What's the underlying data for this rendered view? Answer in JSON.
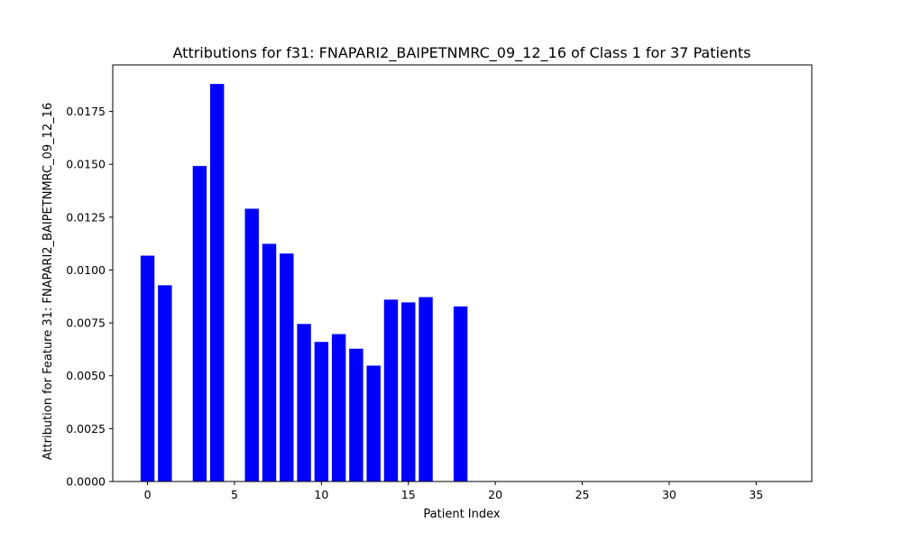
{
  "chart_data": {
    "type": "bar",
    "title": "Attributions for f31: FNAPARI2_BAIPETNMRC_09_12_16 of Class 1 for 37 Patients",
    "xlabel": "Patient Index",
    "ylabel": "Attribution for Feature 31: FNAPARI2_BAIPETNMRC_09_12_16",
    "xlim": [
      -2,
      38.2
    ],
    "ylim": [
      0,
      0.0197
    ],
    "bar_width": 0.8,
    "bar_color": "#0000ff",
    "x": [
      0,
      1,
      2,
      3,
      4,
      5,
      6,
      7,
      8,
      9,
      10,
      11,
      12,
      13,
      14,
      15,
      16,
      17,
      18,
      19,
      20,
      21,
      22,
      23,
      24,
      25,
      26,
      27,
      28,
      29,
      30,
      31,
      32,
      33,
      34,
      35,
      36
    ],
    "values": [
      0.01068,
      0.00928,
      0,
      0.01492,
      0.0188,
      0,
      0.0129,
      0.01124,
      0.01078,
      0.00745,
      0.0066,
      0.00697,
      0.00628,
      0.00548,
      0.0086,
      0.00847,
      0.00872,
      0,
      0.00828,
      0,
      0,
      0,
      0,
      0,
      0,
      0,
      0,
      0,
      0,
      0,
      0,
      0,
      0,
      0,
      0,
      0,
      0
    ],
    "x_ticks": [
      0,
      5,
      10,
      15,
      20,
      25,
      30,
      35
    ],
    "x_tick_labels": [
      "0",
      "5",
      "10",
      "15",
      "20",
      "25",
      "30",
      "35"
    ],
    "y_ticks": [
      0,
      0.0025,
      0.005,
      0.0075,
      0.01,
      0.0125,
      0.015,
      0.0175
    ],
    "y_tick_labels": [
      "0.0000",
      "0.0025",
      "0.0050",
      "0.0075",
      "0.0100",
      "0.0125",
      "0.0150",
      "0.0175"
    ],
    "grid": false,
    "legend": false
  }
}
